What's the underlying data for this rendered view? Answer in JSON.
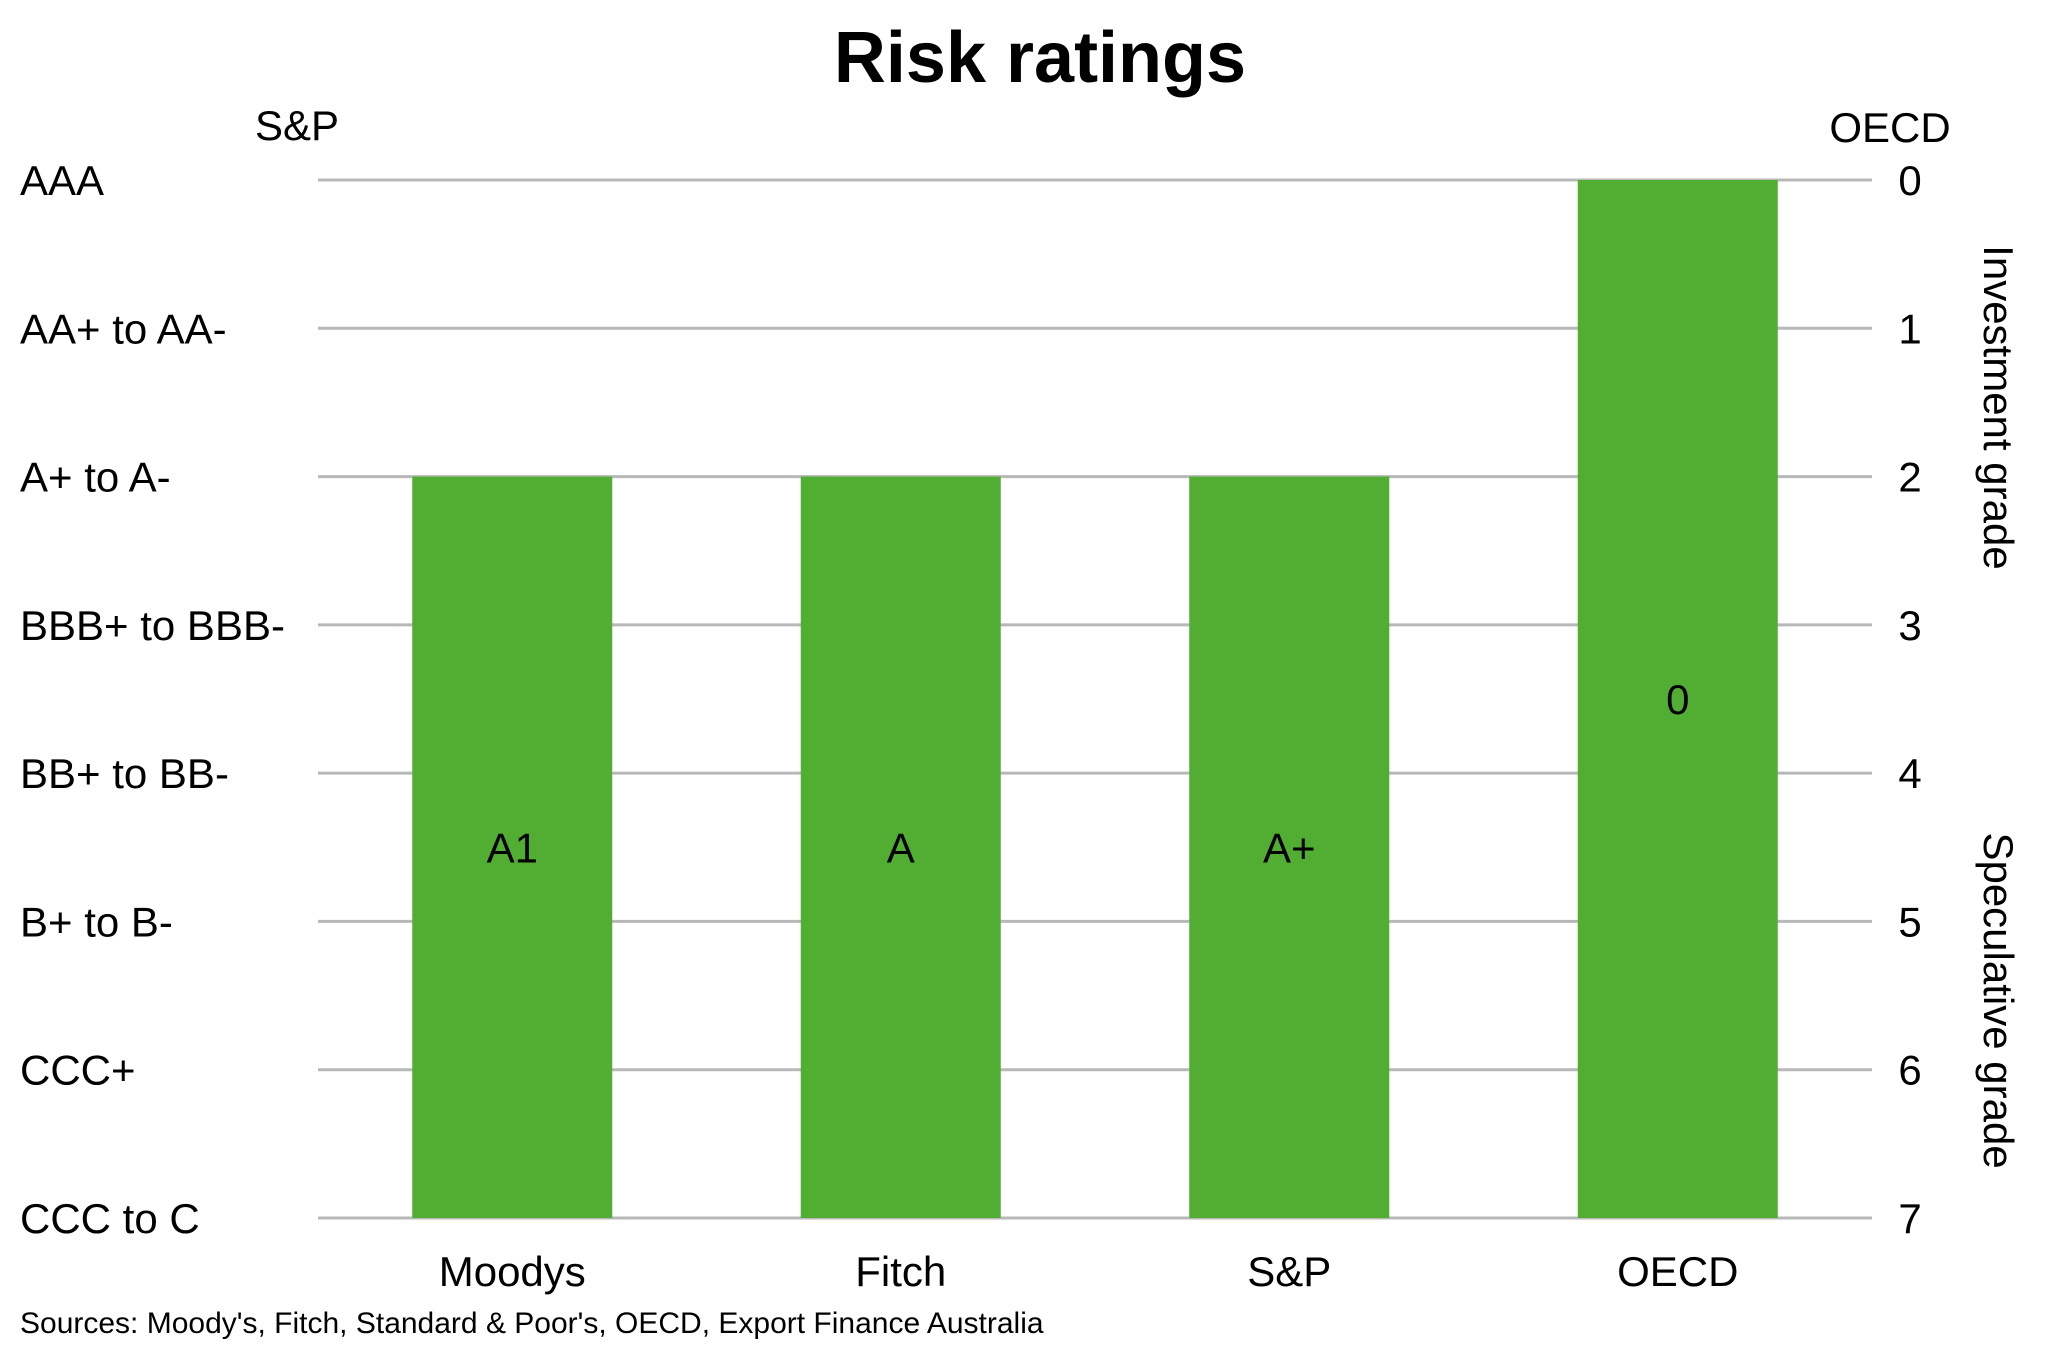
{
  "chart_data": {
    "type": "bar",
    "title": "Risk ratings",
    "left_axis_title": "S&P",
    "right_axis_title": "OECD",
    "left_tick_labels": [
      "AAA",
      "AA+ to AA-",
      "A+ to A-",
      "BBB+ to BBB-",
      "BB+ to BB-",
      "B+ to B-",
      "CCC+",
      "CCC to C"
    ],
    "right_tick_labels": [
      "0",
      "1",
      "2",
      "3",
      "4",
      "5",
      "6",
      "7"
    ],
    "ylim": [
      0,
      7
    ],
    "y_inverted": true,
    "grid": true,
    "categories": [
      "Moodys",
      "Fitch",
      "S&P",
      "OECD"
    ],
    "values": [
      2,
      2,
      2,
      0
    ],
    "bar_labels": [
      "A1",
      "A",
      "A+",
      "0"
    ],
    "bar_color": "#52ad33",
    "right_bands": [
      {
        "label": "Investment grade",
        "from": 0,
        "to": 3
      },
      {
        "label": "Speculative grade",
        "from": 4,
        "to": 7
      }
    ],
    "source": "Sources: Moody's, Fitch, Standard & Poor's, OECD, Export Finance Australia"
  }
}
